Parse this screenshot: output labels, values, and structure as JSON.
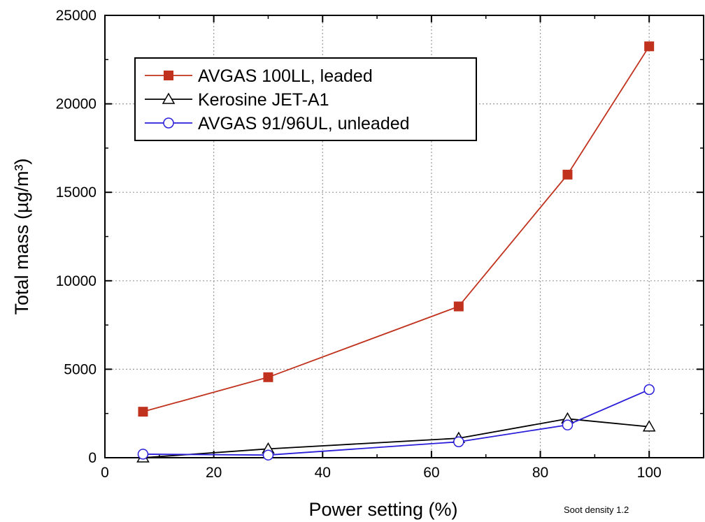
{
  "chart_data": {
    "type": "line",
    "title": "",
    "xlabel": "Power setting (%)",
    "ylabel": "Total mass (µg/m³)",
    "xlim": [
      0,
      110
    ],
    "ylim": [
      0,
      25000
    ],
    "x_ticks": [
      0,
      20,
      40,
      60,
      80,
      100
    ],
    "y_ticks": [
      0,
      5000,
      10000,
      15000,
      20000,
      25000
    ],
    "grid": true,
    "legend_position": "top-left",
    "annotation": "Soot density 1.2",
    "series": [
      {
        "name": "AVGAS 100LL, leaded",
        "color": "#c0321e",
        "marker": "filled-square",
        "x": [
          7,
          30,
          65,
          85,
          100
        ],
        "y": [
          2600,
          4550,
          8550,
          16000,
          23250
        ]
      },
      {
        "name": "Kerosine JET-A1",
        "color": "#000000",
        "marker": "open-triangle",
        "x": [
          7,
          30,
          65,
          85,
          100
        ],
        "y": [
          0,
          500,
          1100,
          2200,
          1750
        ]
      },
      {
        "name": "AVGAS 91/96UL, unleaded",
        "color": "#2a1ed8",
        "marker": "open-circle",
        "x": [
          7,
          30,
          65,
          85,
          100
        ],
        "y": [
          200,
          150,
          900,
          1850,
          3850
        ]
      }
    ]
  }
}
